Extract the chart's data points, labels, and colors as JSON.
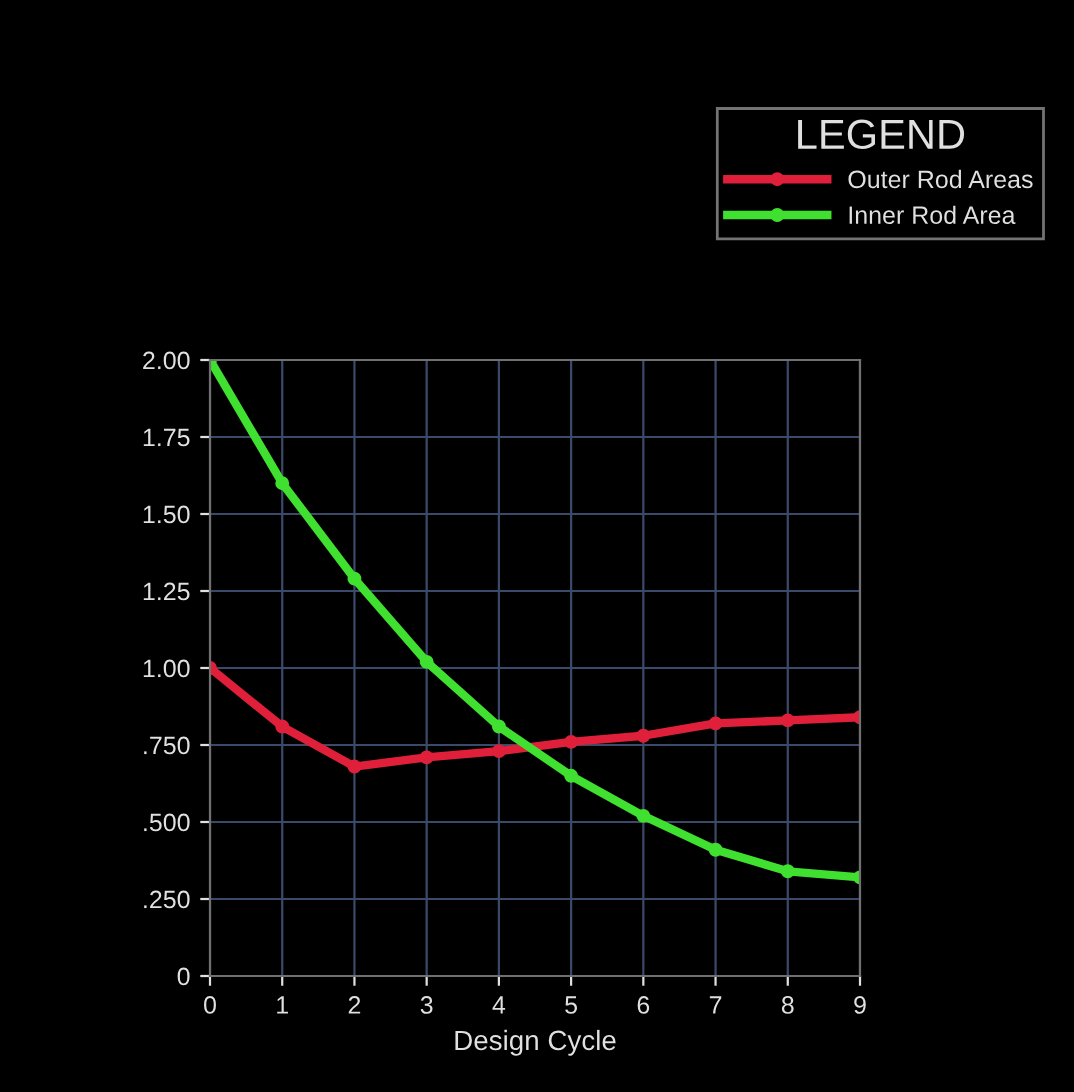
{
  "chart_data": {
    "type": "line",
    "xlabel": "Design Cycle",
    "legend_title": "LEGEND",
    "legend": "top right",
    "x": [
      0,
      1,
      2,
      3,
      4,
      5,
      6,
      7,
      8,
      9
    ],
    "series": [
      {
        "name": "Outer Rod Areas",
        "color": "#e0203a",
        "values": [
          1.0,
          0.81,
          0.68,
          0.71,
          0.73,
          0.76,
          0.78,
          0.82,
          0.83,
          0.84
        ]
      },
      {
        "name": "Inner Rod Area",
        "color": "#40e030",
        "values": [
          2.0,
          1.6,
          1.29,
          1.02,
          0.81,
          0.65,
          0.52,
          0.41,
          0.34,
          0.32
        ]
      }
    ],
    "xlim": [
      0,
      9
    ],
    "xticks": [
      0,
      1,
      2,
      3,
      4,
      5,
      6,
      7,
      8,
      9
    ],
    "ylim": [
      0,
      2
    ],
    "yticks": [
      0,
      {
        "value": 0.25,
        "label": ".250"
      },
      {
        "value": 0.5,
        "label": ".500"
      },
      {
        "value": 0.75,
        "label": ".750"
      },
      {
        "value": 1,
        "label": "1.00"
      },
      {
        "value": 1.25,
        "label": "1.25"
      },
      {
        "value": 1.5,
        "label": "1.50"
      },
      {
        "value": 1.75,
        "label": "1.75"
      },
      {
        "value": 2,
        "label": "2.00"
      }
    ],
    "grid": true,
    "marker": "circle",
    "line_style": "solid"
  }
}
